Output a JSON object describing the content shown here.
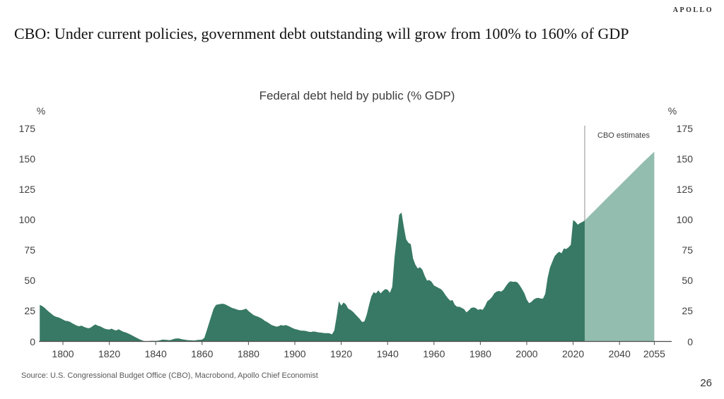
{
  "header": {
    "logo": "APOLLO",
    "title": "CBO: Under current policies, government debt outstanding will grow from 100% to 160% of GDP"
  },
  "footer": {
    "source": "Source: U.S. Congressional Budget Office (CBO), Macrobond, Apollo Chief Economist",
    "page_number": "26"
  },
  "chart_data": {
    "type": "area",
    "title": "Federal debt held by public (% GDP)",
    "unit_label": "%",
    "grid": false,
    "legend_position": "none",
    "ylim": [
      0,
      175
    ],
    "yticks": [
      0,
      25,
      50,
      75,
      100,
      125,
      150,
      175
    ],
    "xticks": [
      1800,
      1820,
      1840,
      1860,
      1880,
      1900,
      1920,
      1940,
      1960,
      1980,
      2000,
      2020,
      2040,
      2055
    ],
    "annotation": {
      "label": "CBO estimates",
      "line_year": 2025
    },
    "colors": {
      "historical": "#377964",
      "estimate": "#93BDAF",
      "axis": "#4d4d4d",
      "annotation_line": "#8c8c8c"
    },
    "series": [
      {
        "name": "Historical",
        "color_key": "historical",
        "points": [
          [
            1790,
            30
          ],
          [
            1791,
            29.2
          ],
          [
            1792,
            27.8
          ],
          [
            1793,
            26
          ],
          [
            1794,
            24.3
          ],
          [
            1795,
            22.8
          ],
          [
            1796,
            21.2
          ],
          [
            1797,
            20.3
          ],
          [
            1798,
            19.8
          ],
          [
            1799,
            19
          ],
          [
            1800,
            18
          ],
          [
            1801,
            17
          ],
          [
            1802,
            16.8
          ],
          [
            1803,
            16.2
          ],
          [
            1804,
            15
          ],
          [
            1805,
            14
          ],
          [
            1806,
            13
          ],
          [
            1807,
            12.5
          ],
          [
            1808,
            13
          ],
          [
            1809,
            12
          ],
          [
            1810,
            11.3
          ],
          [
            1811,
            10.8
          ],
          [
            1812,
            11.5
          ],
          [
            1813,
            12.8
          ],
          [
            1814,
            14
          ],
          [
            1815,
            13
          ],
          [
            1816,
            12.5
          ],
          [
            1817,
            11.5
          ],
          [
            1818,
            10.5
          ],
          [
            1819,
            10
          ],
          [
            1820,
            9.8
          ],
          [
            1821,
            10.5
          ],
          [
            1822,
            9.5
          ],
          [
            1823,
            9
          ],
          [
            1824,
            10
          ],
          [
            1825,
            9
          ],
          [
            1826,
            8
          ],
          [
            1827,
            7.5
          ],
          [
            1828,
            6.7
          ],
          [
            1829,
            5.8
          ],
          [
            1830,
            4.8
          ],
          [
            1831,
            3.8
          ],
          [
            1832,
            2.8
          ],
          [
            1833,
            1.8
          ],
          [
            1834,
            1
          ],
          [
            1835,
            0.3
          ],
          [
            1836,
            0.2
          ],
          [
            1837,
            0.3
          ],
          [
            1838,
            0.5
          ],
          [
            1839,
            0.5
          ],
          [
            1840,
            0.4
          ],
          [
            1841,
            0.6
          ],
          [
            1842,
            1
          ],
          [
            1843,
            1.5
          ],
          [
            1844,
            1.4
          ],
          [
            1845,
            1.2
          ],
          [
            1846,
            1
          ],
          [
            1847,
            1.5
          ],
          [
            1848,
            2.2
          ],
          [
            1849,
            2.5
          ],
          [
            1850,
            2.5
          ],
          [
            1851,
            2
          ],
          [
            1852,
            1.6
          ],
          [
            1853,
            1.3
          ],
          [
            1854,
            1
          ],
          [
            1855,
            0.9
          ],
          [
            1856,
            0.8
          ],
          [
            1857,
            0.8
          ],
          [
            1858,
            1.2
          ],
          [
            1859,
            1.3
          ],
          [
            1860,
            1.5
          ],
          [
            1861,
            3
          ],
          [
            1862,
            9
          ],
          [
            1863,
            15
          ],
          [
            1864,
            21
          ],
          [
            1865,
            27
          ],
          [
            1866,
            30
          ],
          [
            1867,
            30.5
          ],
          [
            1868,
            30.8
          ],
          [
            1869,
            31
          ],
          [
            1870,
            30.5
          ],
          [
            1871,
            29.5
          ],
          [
            1872,
            28.5
          ],
          [
            1873,
            27.5
          ],
          [
            1874,
            27
          ],
          [
            1875,
            26.3
          ],
          [
            1876,
            25.8
          ],
          [
            1877,
            25.8
          ],
          [
            1878,
            26.3
          ],
          [
            1879,
            27
          ],
          [
            1880,
            25
          ],
          [
            1881,
            23.5
          ],
          [
            1882,
            22
          ],
          [
            1883,
            21
          ],
          [
            1884,
            20.5
          ],
          [
            1885,
            19.5
          ],
          [
            1886,
            18.5
          ],
          [
            1887,
            17
          ],
          [
            1888,
            16
          ],
          [
            1889,
            14.8
          ],
          [
            1890,
            13.5
          ],
          [
            1891,
            12.8
          ],
          [
            1892,
            12.2
          ],
          [
            1893,
            12.5
          ],
          [
            1894,
            13.5
          ],
          [
            1895,
            13
          ],
          [
            1896,
            13.5
          ],
          [
            1897,
            12.8
          ],
          [
            1898,
            12
          ],
          [
            1899,
            11
          ],
          [
            1900,
            10.2
          ],
          [
            1901,
            9.8
          ],
          [
            1902,
            9.2
          ],
          [
            1903,
            8.8
          ],
          [
            1904,
            8.8
          ],
          [
            1905,
            8.5
          ],
          [
            1906,
            8
          ],
          [
            1907,
            7.8
          ],
          [
            1908,
            8.2
          ],
          [
            1909,
            8
          ],
          [
            1910,
            7.5
          ],
          [
            1911,
            7.3
          ],
          [
            1912,
            7
          ],
          [
            1913,
            6.8
          ],
          [
            1914,
            6.8
          ],
          [
            1915,
            6.7
          ],
          [
            1916,
            5.8
          ],
          [
            1917,
            9
          ],
          [
            1918,
            20
          ],
          [
            1919,
            33
          ],
          [
            1920,
            29.5
          ],
          [
            1921,
            32
          ],
          [
            1922,
            30.5
          ],
          [
            1923,
            27
          ],
          [
            1924,
            26
          ],
          [
            1925,
            24.5
          ],
          [
            1926,
            22.5
          ],
          [
            1927,
            20.5
          ],
          [
            1928,
            18.5
          ],
          [
            1929,
            16
          ],
          [
            1930,
            16.5
          ],
          [
            1931,
            22
          ],
          [
            1932,
            30
          ],
          [
            1933,
            37
          ],
          [
            1934,
            40.5
          ],
          [
            1935,
            39.5
          ],
          [
            1936,
            42
          ],
          [
            1937,
            39.5
          ],
          [
            1938,
            41.5
          ],
          [
            1939,
            43
          ],
          [
            1940,
            42.5
          ],
          [
            1941,
            40
          ],
          [
            1942,
            45
          ],
          [
            1943,
            69
          ],
          [
            1944,
            86
          ],
          [
            1945,
            104
          ],
          [
            1946,
            106
          ],
          [
            1947,
            94
          ],
          [
            1948,
            84
          ],
          [
            1949,
            81
          ],
          [
            1950,
            80
          ],
          [
            1951,
            68
          ],
          [
            1952,
            63
          ],
          [
            1953,
            60
          ],
          [
            1954,
            61
          ],
          [
            1955,
            59
          ],
          [
            1956,
            54
          ],
          [
            1957,
            50
          ],
          [
            1958,
            50.5
          ],
          [
            1959,
            49
          ],
          [
            1960,
            46
          ],
          [
            1961,
            45
          ],
          [
            1962,
            44
          ],
          [
            1963,
            43
          ],
          [
            1964,
            41
          ],
          [
            1965,
            38
          ],
          [
            1966,
            35.5
          ],
          [
            1967,
            33.5
          ],
          [
            1968,
            34
          ],
          [
            1969,
            30
          ],
          [
            1970,
            28.5
          ],
          [
            1971,
            28.5
          ],
          [
            1972,
            27.5
          ],
          [
            1973,
            26.5
          ],
          [
            1974,
            24
          ],
          [
            1975,
            25.5
          ],
          [
            1976,
            27.5
          ],
          [
            1977,
            28
          ],
          [
            1978,
            27.5
          ],
          [
            1979,
            26
          ],
          [
            1980,
            26.5
          ],
          [
            1981,
            26
          ],
          [
            1982,
            29
          ],
          [
            1983,
            33
          ],
          [
            1984,
            34.5
          ],
          [
            1985,
            36.5
          ],
          [
            1986,
            39.5
          ],
          [
            1987,
            41
          ],
          [
            1988,
            41.5
          ],
          [
            1989,
            41
          ],
          [
            1990,
            42.5
          ],
          [
            1991,
            45.5
          ],
          [
            1992,
            48
          ],
          [
            1993,
            49.5
          ],
          [
            1994,
            49
          ],
          [
            1995,
            49.2
          ],
          [
            1996,
            48.5
          ],
          [
            1997,
            46
          ],
          [
            1998,
            43
          ],
          [
            1999,
            39.5
          ],
          [
            2000,
            34.5
          ],
          [
            2001,
            31.5
          ],
          [
            2002,
            32.5
          ],
          [
            2003,
            34.5
          ],
          [
            2004,
            35.5
          ],
          [
            2005,
            35.8
          ],
          [
            2006,
            35.3
          ],
          [
            2007,
            35.2
          ],
          [
            2008,
            39.2
          ],
          [
            2009,
            52.2
          ],
          [
            2010,
            60.6
          ],
          [
            2011,
            65.5
          ],
          [
            2012,
            70
          ],
          [
            2013,
            72.2
          ],
          [
            2014,
            73.7
          ],
          [
            2015,
            72.5
          ],
          [
            2016,
            76.4
          ],
          [
            2017,
            76
          ],
          [
            2018,
            77.4
          ],
          [
            2019,
            79.4
          ],
          [
            2020,
            99.8
          ],
          [
            2021,
            98.4
          ],
          [
            2022,
            96
          ],
          [
            2023,
            97.3
          ],
          [
            2024,
            98.2
          ],
          [
            2025,
            99.5
          ]
        ]
      },
      {
        "name": "CBO estimates",
        "color_key": "estimate",
        "points": [
          [
            2025,
            99.5
          ],
          [
            2030,
            109
          ],
          [
            2035,
            118.5
          ],
          [
            2040,
            128
          ],
          [
            2045,
            137.5
          ],
          [
            2050,
            147
          ],
          [
            2055,
            156
          ]
        ]
      }
    ]
  }
}
